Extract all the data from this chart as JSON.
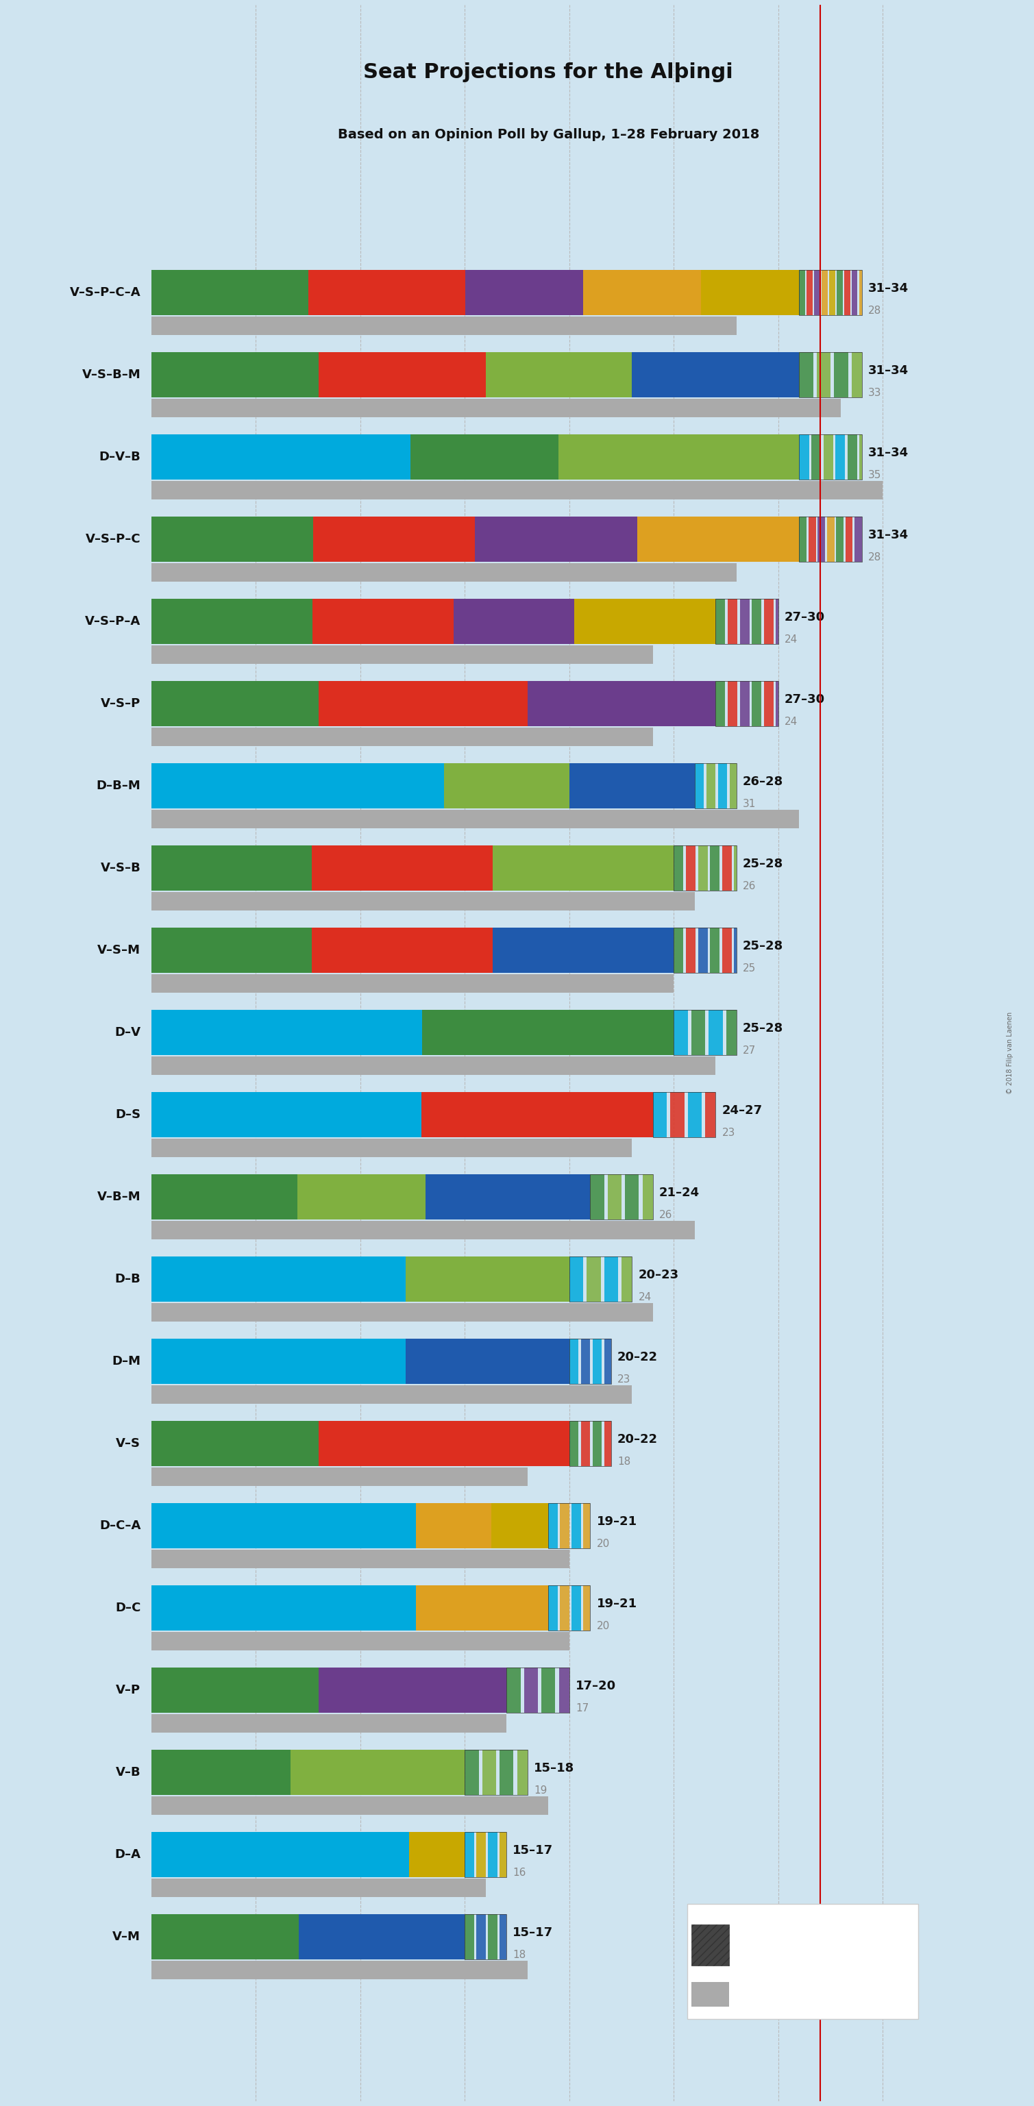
{
  "title": "Seat Projections for the Alþingi",
  "subtitle": "Based on an Opinion Poll by Gallup, 1–28 February 2018",
  "background_color": "#cfe4f0",
  "coalitions": [
    {
      "name": "V–S–P–C–A",
      "range_low": 31,
      "range_high": 34,
      "last": 28,
      "parties": [
        {
          "name": "V",
          "color": "#3d8c40",
          "seats": 8
        },
        {
          "name": "S",
          "color": "#dd2e1f",
          "seats": 8
        },
        {
          "name": "P",
          "color": "#6b3d8c",
          "seats": 6
        },
        {
          "name": "C",
          "color": "#dda020",
          "seats": 6
        },
        {
          "name": "A",
          "color": "#c8a800",
          "seats": 5
        }
      ],
      "hatch_colors": [
        "#3d8c40",
        "#dd2e1f",
        "#6b3d8c",
        "#dda020",
        "#c8a800"
      ],
      "bar_max": 34
    },
    {
      "name": "V–S–B–M",
      "range_low": 31,
      "range_high": 34,
      "last": 33,
      "parties": [
        {
          "name": "V",
          "color": "#3d8c40",
          "seats": 8
        },
        {
          "name": "S",
          "color": "#dd2e1f",
          "seats": 8
        },
        {
          "name": "B",
          "color": "#80b040",
          "seats": 7
        },
        {
          "name": "M",
          "color": "#1f5aad",
          "seats": 8
        }
      ],
      "hatch_colors": [
        "#3d8c40",
        "#80b040"
      ],
      "bar_max": 34
    },
    {
      "name": "D–V–B",
      "range_low": 31,
      "range_high": 34,
      "last": 35,
      "parties": [
        {
          "name": "D",
          "color": "#00aadd",
          "seats": 14
        },
        {
          "name": "V",
          "color": "#3d8c40",
          "seats": 8
        },
        {
          "name": "B",
          "color": "#80b040",
          "seats": 13
        }
      ],
      "hatch_colors": [
        "#00aadd",
        "#3d8c40",
        "#80b040"
      ],
      "bar_max": 35
    },
    {
      "name": "V–S–P–C",
      "range_low": 31,
      "range_high": 34,
      "last": 28,
      "parties": [
        {
          "name": "V",
          "color": "#3d8c40",
          "seats": 8
        },
        {
          "name": "S",
          "color": "#dd2e1f",
          "seats": 8
        },
        {
          "name": "P",
          "color": "#6b3d8c",
          "seats": 8
        },
        {
          "name": "C",
          "color": "#dda020",
          "seats": 8
        }
      ],
      "hatch_colors": [
        "#3d8c40",
        "#dd2e1f",
        "#6b3d8c",
        "#dda020"
      ],
      "bar_max": 34
    },
    {
      "name": "V–S–P–A",
      "range_low": 27,
      "range_high": 30,
      "last": 24,
      "parties": [
        {
          "name": "V",
          "color": "#3d8c40",
          "seats": 8
        },
        {
          "name": "S",
          "color": "#dd2e1f",
          "seats": 7
        },
        {
          "name": "P",
          "color": "#6b3d8c",
          "seats": 6
        },
        {
          "name": "A",
          "color": "#c8a800",
          "seats": 7
        }
      ],
      "hatch_colors": [
        "#3d8c40",
        "#dd2e1f",
        "#6b3d8c"
      ],
      "bar_max": 30
    },
    {
      "name": "V–S–P",
      "range_low": 27,
      "range_high": 30,
      "last": 24,
      "parties": [
        {
          "name": "V",
          "color": "#3d8c40",
          "seats": 8
        },
        {
          "name": "S",
          "color": "#dd2e1f",
          "seats": 10
        },
        {
          "name": "P",
          "color": "#6b3d8c",
          "seats": 9
        }
      ],
      "hatch_colors": [
        "#3d8c40",
        "#dd2e1f",
        "#6b3d8c"
      ],
      "bar_max": 30
    },
    {
      "name": "D–B–M",
      "range_low": 26,
      "range_high": 28,
      "last": 31,
      "parties": [
        {
          "name": "D",
          "color": "#00aadd",
          "seats": 14
        },
        {
          "name": "B",
          "color": "#80b040",
          "seats": 6
        },
        {
          "name": "M",
          "color": "#1f5aad",
          "seats": 6
        }
      ],
      "hatch_colors": [
        "#00aadd",
        "#80b040"
      ],
      "bar_max": 31
    },
    {
      "name": "V–S–B",
      "range_low": 25,
      "range_high": 28,
      "last": 26,
      "parties": [
        {
          "name": "V",
          "color": "#3d8c40",
          "seats": 8
        },
        {
          "name": "S",
          "color": "#dd2e1f",
          "seats": 9
        },
        {
          "name": "B",
          "color": "#80b040",
          "seats": 9
        }
      ],
      "hatch_colors": [
        "#3d8c40",
        "#dd2e1f",
        "#80b040"
      ],
      "bar_max": 28
    },
    {
      "name": "V–S–M",
      "range_low": 25,
      "range_high": 28,
      "last": 25,
      "parties": [
        {
          "name": "V",
          "color": "#3d8c40",
          "seats": 8
        },
        {
          "name": "S",
          "color": "#dd2e1f",
          "seats": 9
        },
        {
          "name": "M",
          "color": "#1f5aad",
          "seats": 9
        }
      ],
      "hatch_colors": [
        "#3d8c40",
        "#dd2e1f",
        "#1f5aad"
      ],
      "bar_max": 28
    },
    {
      "name": "D–V",
      "range_low": 25,
      "range_high": 28,
      "last": 27,
      "parties": [
        {
          "name": "D",
          "color": "#00aadd",
          "seats": 14
        },
        {
          "name": "V",
          "color": "#3d8c40",
          "seats": 13
        }
      ],
      "hatch_colors": [
        "#00aadd",
        "#3d8c40"
      ],
      "bar_max": 28
    },
    {
      "name": "D–S",
      "range_low": 24,
      "range_high": 27,
      "last": 23,
      "parties": [
        {
          "name": "D",
          "color": "#00aadd",
          "seats": 14
        },
        {
          "name": "S",
          "color": "#dd2e1f",
          "seats": 12
        }
      ],
      "hatch_colors": [
        "#00aadd",
        "#dd2e1f"
      ],
      "bar_max": 27
    },
    {
      "name": "V–B–M",
      "range_low": 21,
      "range_high": 24,
      "last": 26,
      "parties": [
        {
          "name": "V",
          "color": "#3d8c40",
          "seats": 8
        },
        {
          "name": "B",
          "color": "#80b040",
          "seats": 7
        },
        {
          "name": "M",
          "color": "#1f5aad",
          "seats": 9
        }
      ],
      "hatch_colors": [
        "#3d8c40",
        "#80b040"
      ],
      "bar_max": 26
    },
    {
      "name": "D–B",
      "range_low": 20,
      "range_high": 23,
      "last": 24,
      "parties": [
        {
          "name": "D",
          "color": "#00aadd",
          "seats": 14
        },
        {
          "name": "B",
          "color": "#80b040",
          "seats": 9
        }
      ],
      "hatch_colors": [
        "#00aadd",
        "#80b040"
      ],
      "bar_max": 24
    },
    {
      "name": "D–M",
      "range_low": 20,
      "range_high": 22,
      "last": 23,
      "parties": [
        {
          "name": "D",
          "color": "#00aadd",
          "seats": 14
        },
        {
          "name": "M",
          "color": "#1f5aad",
          "seats": 9
        }
      ],
      "hatch_colors": [
        "#00aadd",
        "#1f5aad"
      ],
      "bar_max": 23
    },
    {
      "name": "V–S",
      "range_low": 20,
      "range_high": 22,
      "last": 18,
      "parties": [
        {
          "name": "V",
          "color": "#3d8c40",
          "seats": 8
        },
        {
          "name": "S",
          "color": "#dd2e1f",
          "seats": 12
        }
      ],
      "hatch_colors": [
        "#3d8c40",
        "#dd2e1f"
      ],
      "bar_max": 22
    },
    {
      "name": "D–C–A",
      "range_low": 19,
      "range_high": 21,
      "last": 20,
      "parties": [
        {
          "name": "D",
          "color": "#00aadd",
          "seats": 14
        },
        {
          "name": "C",
          "color": "#dda020",
          "seats": 4
        },
        {
          "name": "A",
          "color": "#c8a800",
          "seats": 3
        }
      ],
      "hatch_colors": [
        "#00aadd",
        "#dda020"
      ],
      "bar_max": 21
    },
    {
      "name": "D–C",
      "range_low": 19,
      "range_high": 21,
      "last": 20,
      "parties": [
        {
          "name": "D",
          "color": "#00aadd",
          "seats": 14
        },
        {
          "name": "C",
          "color": "#dda020",
          "seats": 7
        }
      ],
      "hatch_colors": [
        "#00aadd",
        "#dda020"
      ],
      "bar_max": 21
    },
    {
      "name": "V–P",
      "range_low": 17,
      "range_high": 20,
      "last": 17,
      "parties": [
        {
          "name": "V",
          "color": "#3d8c40",
          "seats": 8
        },
        {
          "name": "P",
          "color": "#6b3d8c",
          "seats": 9
        }
      ],
      "hatch_colors": [
        "#3d8c40",
        "#6b3d8c"
      ],
      "bar_max": 20
    },
    {
      "name": "V–B",
      "range_low": 15,
      "range_high": 18,
      "last": 19,
      "parties": [
        {
          "name": "V",
          "color": "#3d8c40",
          "seats": 8
        },
        {
          "name": "B",
          "color": "#80b040",
          "seats": 10
        }
      ],
      "hatch_colors": [
        "#3d8c40",
        "#80b040"
      ],
      "bar_max": 19
    },
    {
      "name": "D–A",
      "range_low": 15,
      "range_high": 17,
      "last": 16,
      "parties": [
        {
          "name": "D",
          "color": "#00aadd",
          "seats": 14
        },
        {
          "name": "A",
          "color": "#c8a800",
          "seats": 3
        }
      ],
      "hatch_colors": [
        "#00aadd",
        "#c8a800"
      ],
      "bar_max": 17
    },
    {
      "name": "V–M",
      "range_low": 15,
      "range_high": 17,
      "last": 18,
      "parties": [
        {
          "name": "V",
          "color": "#3d8c40",
          "seats": 8
        },
        {
          "name": "M",
          "color": "#1f5aad",
          "seats": 9
        }
      ],
      "hatch_colors": [
        "#3d8c40",
        "#1f5aad"
      ],
      "bar_max": 18
    }
  ],
  "x_max": 38,
  "majority_line": 32,
  "majority_line_color": "#cc0000",
  "legend_ci_color": "#444444",
  "legend_last_color": "#888888"
}
